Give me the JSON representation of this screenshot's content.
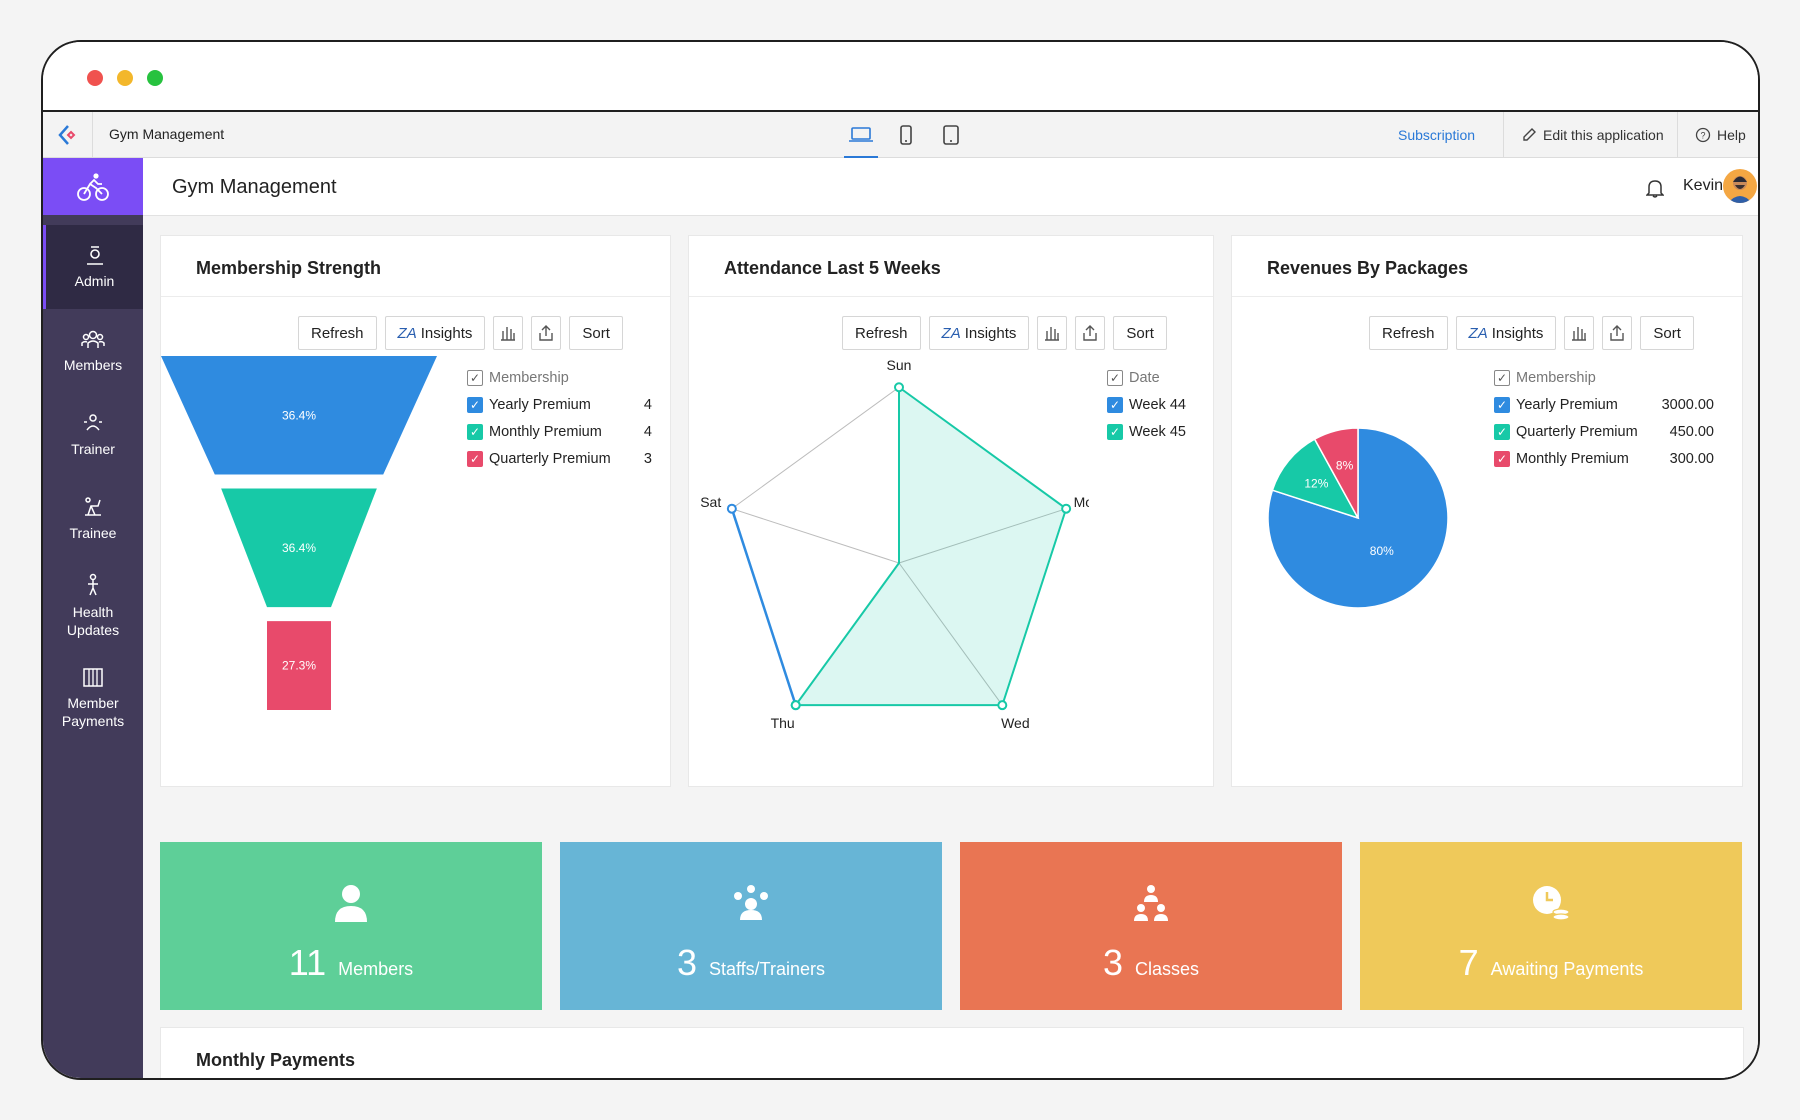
{
  "app": {
    "name": "Gym Management"
  },
  "appbar": {
    "subscription": "Subscription",
    "edit": "Edit this application",
    "help": "Help"
  },
  "header": {
    "title": "Gym Management",
    "user": "Kevin"
  },
  "sidebar": {
    "items": [
      {
        "label": "Admin",
        "icon": "admin-icon"
      },
      {
        "label": "Members",
        "icon": "members-icon"
      },
      {
        "label": "Trainer",
        "icon": "trainer-icon"
      },
      {
        "label": "Trainee",
        "icon": "trainee-icon"
      },
      {
        "label": "Health Updates",
        "icon": "health-icon"
      },
      {
        "label": "Member Payments",
        "icon": "payments-icon"
      }
    ]
  },
  "toolbar": {
    "refresh": "Refresh",
    "insights": "Insights",
    "sort": "Sort"
  },
  "cards": {
    "membership": {
      "title": "Membership Strength",
      "legend_header": "Membership",
      "legend": [
        {
          "label": "Yearly Premium",
          "value": "4"
        },
        {
          "label": "Monthly Premium",
          "value": "4"
        },
        {
          "label": "Quarterly Premium",
          "value": "3"
        }
      ]
    },
    "attendance": {
      "title": "Attendance Last 5 Weeks",
      "legend_header": "Date",
      "legend": [
        {
          "label": "Week 44"
        },
        {
          "label": "Week 45"
        }
      ]
    },
    "revenue": {
      "title": "Revenues By Packages",
      "legend_header": "Membership",
      "legend": [
        {
          "label": "Yearly Premium",
          "value": "3000.00"
        },
        {
          "label": "Quarterly Premium",
          "value": "450.00"
        },
        {
          "label": "Monthly Premium",
          "value": "300.00"
        }
      ]
    }
  },
  "chart_data": [
    {
      "type": "funnel",
      "title": "Membership Strength",
      "categories": [
        "Yearly Premium",
        "Monthly Premium",
        "Quarterly Premium"
      ],
      "values": [
        4,
        4,
        3
      ],
      "labels": [
        "36.4%",
        "36.4%",
        "27.3%"
      ],
      "colors": [
        "#2f8be0",
        "#17c9a7",
        "#e84a6b"
      ]
    },
    {
      "type": "radar",
      "title": "Attendance Last 5 Weeks",
      "axes": [
        "Sun",
        "Mon",
        "Wed",
        "Thu",
        "Sat"
      ],
      "series": [
        {
          "name": "Week 44",
          "color": "#2f8be0",
          "values": [
            0,
            0,
            0,
            0.95,
            0.95
          ]
        },
        {
          "name": "Week 45",
          "color": "#17c9a7",
          "values": [
            0.95,
            0.95,
            0.95,
            0.95,
            0
          ]
        }
      ]
    },
    {
      "type": "pie",
      "title": "Revenues By Packages",
      "categories": [
        "Yearly Premium",
        "Quarterly Premium",
        "Monthly Premium"
      ],
      "values": [
        3000,
        450,
        300
      ],
      "labels": [
        "80%",
        "12%",
        "8%"
      ],
      "colors": [
        "#2f8be0",
        "#17c9a7",
        "#e84a6b"
      ]
    }
  ],
  "stats": [
    {
      "number": "11",
      "label": "Members",
      "color": "#5ecf98",
      "icon": "person-icon"
    },
    {
      "number": "3",
      "label": "Staffs/Trainers",
      "color": "#67b5d6",
      "icon": "group-icon"
    },
    {
      "number": "3",
      "label": "Classes",
      "color": "#e97553",
      "icon": "classes-icon"
    },
    {
      "number": "7",
      "label": "Awaiting Payments",
      "color": "#efc95a",
      "icon": "clock-coins-icon"
    }
  ],
  "bottom": {
    "title": "Monthly Payments"
  }
}
